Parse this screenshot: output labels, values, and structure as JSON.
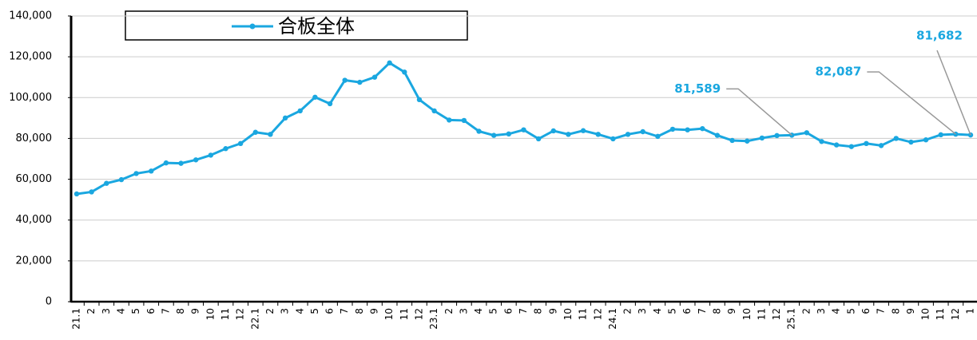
{
  "chart_data": {
    "type": "line",
    "categories": [
      "21.1",
      "2",
      "3",
      "4",
      "5",
      "6",
      "7",
      "8",
      "9",
      "10",
      "11",
      "12",
      "22.1",
      "2",
      "3",
      "4",
      "5",
      "6",
      "7",
      "8",
      "9",
      "10",
      "11",
      "12",
      "23.1",
      "2",
      "3",
      "4",
      "5",
      "6",
      "7",
      "8",
      "9",
      "10",
      "11",
      "12",
      "24.1",
      "2",
      "3",
      "4",
      "5",
      "6",
      "7",
      "8",
      "9",
      "10",
      "11",
      "12",
      "25.1",
      "2",
      "3",
      "4",
      "5",
      "6",
      "7",
      "8",
      "9",
      "10",
      "11",
      "12",
      "1"
    ],
    "series": [
      {
        "name": "合板全体",
        "color": "#1aa7e0",
        "values": [
          52800,
          53800,
          58000,
          59800,
          62800,
          64000,
          68000,
          67800,
          69500,
          71800,
          75000,
          77500,
          83000,
          82000,
          90000,
          93500,
          100200,
          97000,
          108500,
          107500,
          110000,
          117000,
          112500,
          99000,
          93500,
          89000,
          88800,
          83500,
          81500,
          82200,
          84200,
          79800,
          83700,
          82000,
          83800,
          82000,
          79800,
          82000,
          83300,
          81000,
          84500,
          84200,
          84800,
          81500,
          79000,
          78700,
          80200,
          81400,
          81589,
          82800,
          78500,
          76800,
          76000,
          77500,
          76500,
          80000,
          78200,
          79300,
          81800,
          82087,
          81682
        ],
        "value_labels": [
          null,
          null,
          null,
          null,
          null,
          null,
          null,
          null,
          null,
          null,
          null,
          null,
          null,
          null,
          null,
          null,
          null,
          null,
          null,
          null,
          null,
          null,
          null,
          null,
          null,
          null,
          null,
          null,
          null,
          null,
          null,
          null,
          null,
          null,
          null,
          null,
          null,
          null,
          null,
          null,
          null,
          null,
          null,
          null,
          null,
          null,
          null,
          null,
          "81,589",
          null,
          null,
          null,
          null,
          null,
          null,
          null,
          null,
          null,
          null,
          "82,087",
          "81,682"
        ]
      }
    ],
    "ylim": [
      0,
      140000
    ],
    "yticks": [
      0,
      {
        "value": 20000,
        "label": "20,000"
      },
      {
        "value": 40000,
        "label": "40,000"
      },
      {
        "value": 60000,
        "label": "60,000"
      },
      {
        "value": 80000,
        "label": "80,000"
      },
      {
        "value": 100000,
        "label": "100,000"
      },
      {
        "value": 120000,
        "label": "120,000"
      },
      {
        "value": 140000,
        "label": "140,000"
      }
    ],
    "grid": true
  }
}
